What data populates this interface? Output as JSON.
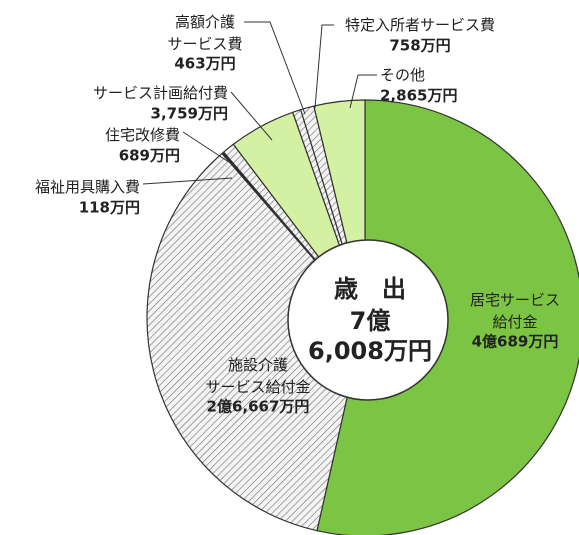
{
  "chart_data": {
    "type": "donut",
    "center": {
      "title": "歳　出",
      "lines": [
        "7億",
        "6,008万円"
      ]
    },
    "categories": [
      "居宅サービス給付金",
      "施設介護サービス給付金",
      "福祉用具購入費",
      "住宅改修費",
      "サービス計画給付費",
      "高額介護サービス費",
      "特定入所者サービス費",
      "その他"
    ],
    "values": [
      40689,
      26667,
      118,
      689,
      3759,
      463,
      758,
      2865
    ],
    "value_labels": [
      "4億689万円",
      "2億6,667万円",
      "118万円",
      "689万円",
      "3,759万円",
      "463万円",
      "758万円",
      "2,865万円"
    ],
    "colors": [
      "#7cc443",
      "#e4e4e4",
      "#222222",
      "#f2f2f2",
      "#d4f0a2",
      "#e4e4e4",
      "#ffffff",
      "#d4f0a2"
    ],
    "hatched": [
      false,
      true,
      false,
      true,
      false,
      true,
      true,
      false
    ]
  }
}
